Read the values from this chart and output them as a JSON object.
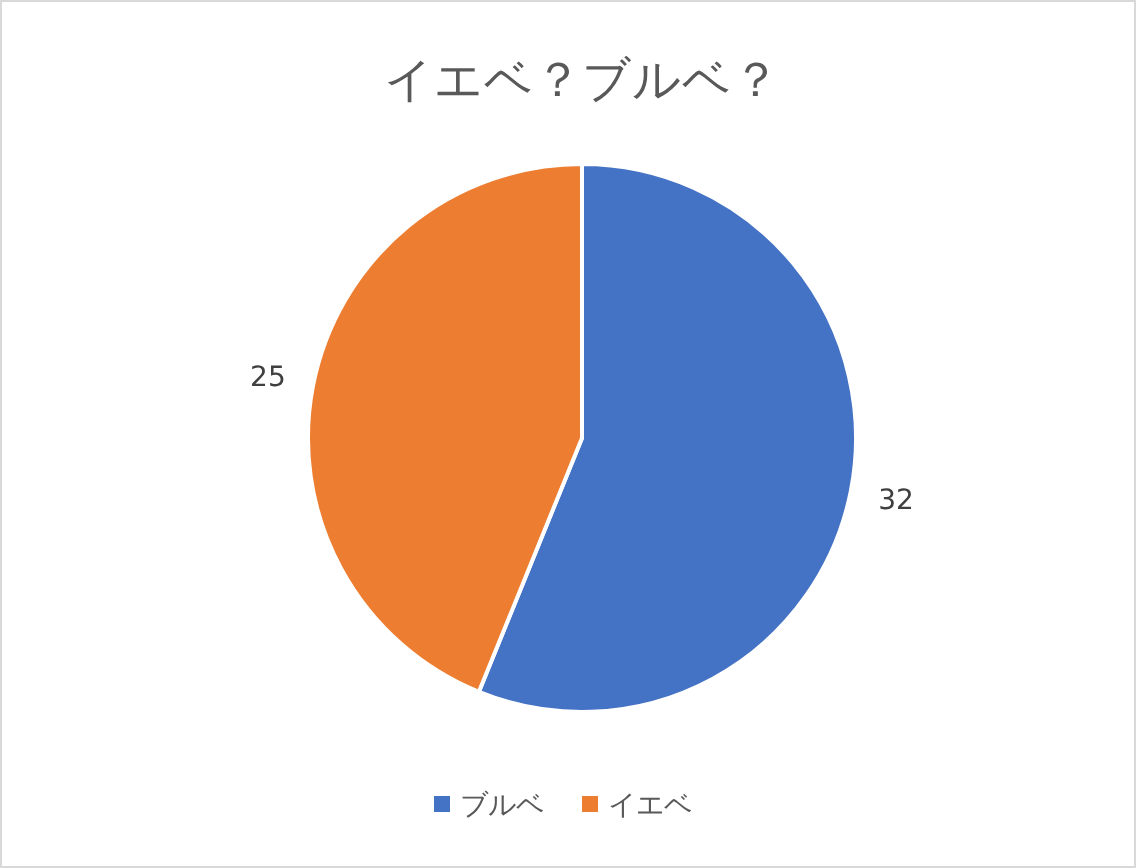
{
  "chart_data": {
    "type": "pie",
    "title": "イエベ？ブルベ？",
    "categories": [
      "ブルベ",
      "イエベ"
    ],
    "values": [
      32,
      25
    ],
    "colors": [
      "#4472c4",
      "#ed7d31"
    ],
    "data_labels": true,
    "legend": "bottom"
  }
}
